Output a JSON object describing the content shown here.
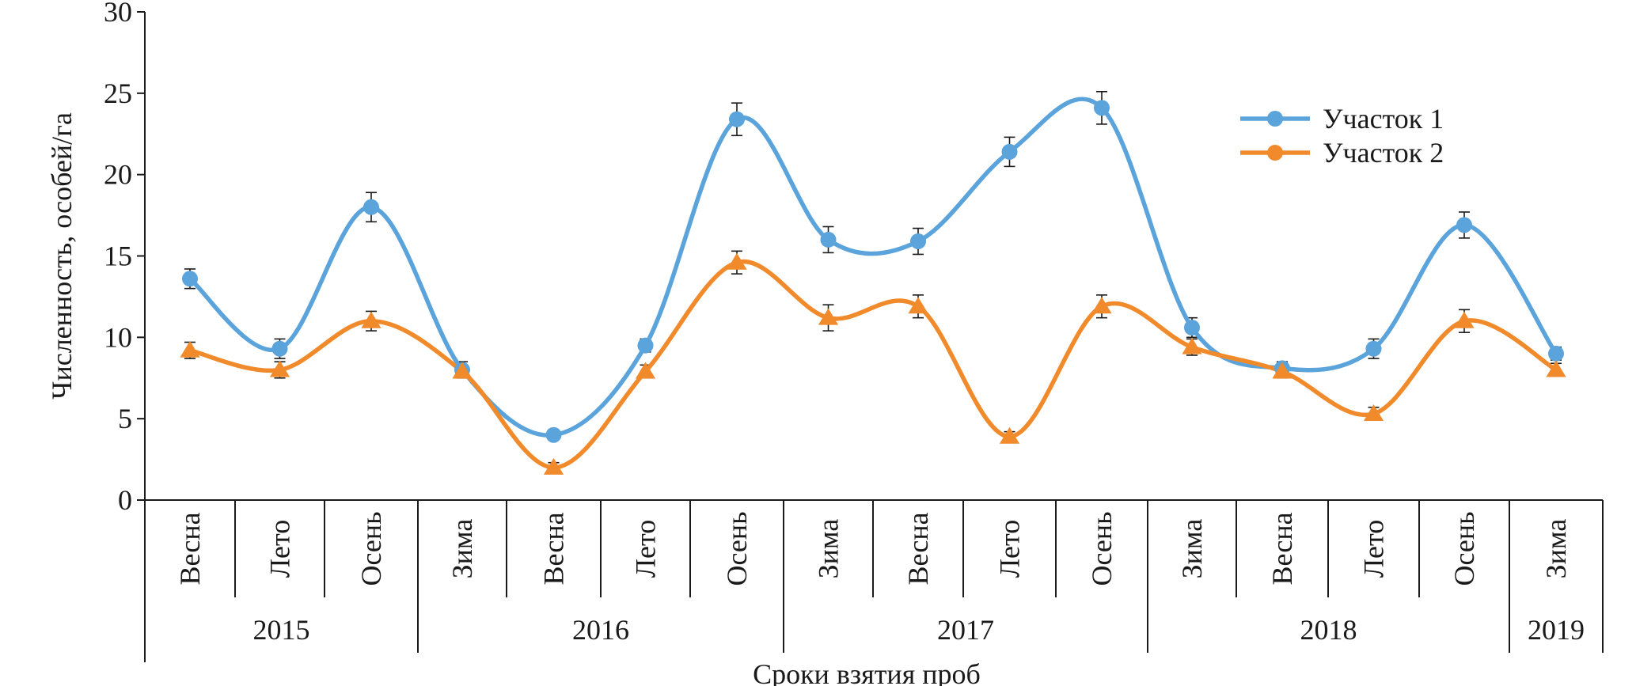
{
  "chart_data": {
    "type": "line",
    "xlabel": "Сроки взятия проб",
    "ylabel": "Численность, особей/га",
    "ylim": [
      0,
      30
    ],
    "yticks": [
      0,
      5,
      10,
      15,
      20,
      25,
      30
    ],
    "grid": false,
    "legend_position": "top-right",
    "categories": [
      "Весна",
      "Лето",
      "Осень",
      "Зима",
      "Весна",
      "Лето",
      "Осень",
      "Зима",
      "Весна",
      "Лето",
      "Осень",
      "Зима",
      "Весна",
      "Лето",
      "Осень",
      "Зима"
    ],
    "years": [
      {
        "label": "2015",
        "count": 3
      },
      {
        "label": "2016",
        "count": 4
      },
      {
        "label": "2017",
        "count": 4
      },
      {
        "label": "2018",
        "count": 4
      },
      {
        "label": "2019",
        "count": 1
      }
    ],
    "series": [
      {
        "name": "Участок 1",
        "color": "#5BA3DB",
        "marker": "circle",
        "values": [
          13.6,
          9.3,
          18.0,
          8.0,
          4.0,
          9.5,
          23.4,
          16.0,
          15.9,
          21.4,
          24.1,
          10.6,
          8.1,
          9.3,
          16.9,
          9.0
        ],
        "errors": [
          0.6,
          0.6,
          0.9,
          0.5,
          0.3,
          0.4,
          1.0,
          0.8,
          0.8,
          0.9,
          1.0,
          0.6,
          0.4,
          0.6,
          0.8,
          0.4
        ]
      },
      {
        "name": "Участок 2",
        "color": "#F08A2B",
        "marker": "triangle",
        "values": [
          9.2,
          8.0,
          11.0,
          7.9,
          2.0,
          7.9,
          14.6,
          11.2,
          11.9,
          3.9,
          11.9,
          9.4,
          7.9,
          5.3,
          11.0,
          8.0
        ],
        "errors": [
          0.5,
          0.5,
          0.6,
          0.4,
          0.3,
          0.4,
          0.7,
          0.8,
          0.7,
          0.3,
          0.7,
          0.5,
          0.4,
          0.4,
          0.7,
          0.4
        ]
      }
    ]
  }
}
